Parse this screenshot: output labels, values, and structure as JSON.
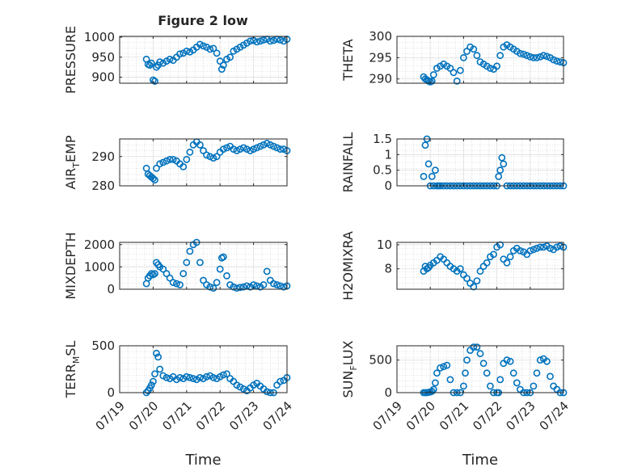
{
  "figure_title": "Figure 2 low",
  "x_tick_labels": [
    "07/19",
    "07/20",
    "07/21",
    "07/22",
    "07/23",
    "07/24"
  ],
  "marker_color": "#0072BD",
  "chart_data": [
    {
      "id": "pressure",
      "type": "scatter",
      "title": "Figure 2 low",
      "xlabel": "",
      "ylabel": "PRESSURE",
      "ylabel_sub": "",
      "xlim": [
        0,
        5
      ],
      "ylim": [
        885,
        1002
      ],
      "yticks": [
        900,
        950,
        1000
      ],
      "x": [
        0.8,
        0.85,
        0.9,
        0.95,
        1.0,
        1.05,
        1.1,
        1.15,
        1.2,
        1.3,
        1.4,
        1.5,
        1.6,
        1.7,
        1.8,
        1.9,
        2.0,
        2.1,
        2.2,
        2.3,
        2.4,
        2.5,
        2.6,
        2.7,
        2.8,
        2.9,
        3.0,
        3.05,
        3.1,
        3.2,
        3.3,
        3.4,
        3.5,
        3.6,
        3.7,
        3.8,
        3.9,
        4.0,
        4.1,
        4.2,
        4.3,
        4.4,
        4.5,
        4.6,
        4.7,
        4.8,
        4.9,
        5.0
      ],
      "y": [
        945,
        932,
        930,
        935,
        893,
        890,
        925,
        930,
        938,
        935,
        940,
        945,
        942,
        950,
        958,
        960,
        965,
        963,
        968,
        975,
        982,
        978,
        975,
        970,
        972,
        960,
        940,
        920,
        930,
        945,
        950,
        965,
        970,
        975,
        980,
        985,
        990,
        992,
        988,
        990,
        993,
        995,
        990,
        992,
        995,
        993,
        990,
        995
      ]
    },
    {
      "id": "theta",
      "type": "scatter",
      "title": "",
      "xlabel": "",
      "ylabel": "THETA",
      "ylabel_sub": "",
      "xlim": [
        0,
        5
      ],
      "ylim": [
        289,
        300
      ],
      "yticks": [
        290,
        295,
        300
      ],
      "x": [
        0.8,
        0.85,
        0.9,
        0.95,
        1.0,
        1.05,
        1.1,
        1.2,
        1.3,
        1.4,
        1.5,
        1.6,
        1.7,
        1.8,
        1.9,
        2.0,
        2.1,
        2.2,
        2.3,
        2.4,
        2.5,
        2.6,
        2.7,
        2.8,
        2.9,
        3.0,
        3.1,
        3.2,
        3.3,
        3.4,
        3.5,
        3.6,
        3.7,
        3.8,
        3.9,
        4.0,
        4.1,
        4.2,
        4.3,
        4.4,
        4.5,
        4.6,
        4.7,
        4.8,
        4.9,
        5.0
      ],
      "y": [
        290.5,
        290.0,
        289.8,
        289.5,
        289.3,
        289.5,
        291.0,
        292.5,
        293.0,
        293.5,
        293.0,
        292.5,
        291.5,
        289.5,
        292.0,
        295.0,
        296.5,
        297.5,
        297.0,
        295.5,
        294.0,
        293.5,
        293.0,
        292.5,
        292.3,
        293.0,
        295.5,
        297.5,
        298.0,
        297.5,
        297.0,
        296.5,
        296.0,
        295.8,
        295.5,
        295.2,
        295.0,
        295.0,
        295.2,
        295.5,
        295.3,
        295.0,
        294.5,
        294.2,
        294.0,
        293.8
      ]
    },
    {
      "id": "air_temp",
      "type": "scatter",
      "title": "",
      "xlabel": "",
      "ylabel": "AIR",
      "ylabel_sub": "T",
      "ylabel_rest": "EMP",
      "xlim": [
        0,
        5
      ],
      "ylim": [
        280,
        296
      ],
      "yticks": [
        280,
        290
      ],
      "x": [
        0.8,
        0.85,
        0.9,
        0.95,
        1.0,
        1.05,
        1.1,
        1.2,
        1.3,
        1.4,
        1.5,
        1.6,
        1.7,
        1.8,
        1.9,
        2.0,
        2.1,
        2.2,
        2.3,
        2.4,
        2.5,
        2.6,
        2.7,
        2.8,
        2.9,
        3.0,
        3.1,
        3.2,
        3.3,
        3.4,
        3.5,
        3.6,
        3.7,
        3.8,
        3.9,
        4.0,
        4.1,
        4.2,
        4.3,
        4.4,
        4.5,
        4.6,
        4.7,
        4.8,
        4.9,
        5.0
      ],
      "y": [
        286,
        284,
        283.5,
        283,
        282.5,
        282,
        286,
        287.5,
        288,
        288.5,
        289,
        289,
        288.5,
        287.5,
        286.5,
        289,
        291.5,
        294,
        295,
        294,
        292,
        290.5,
        290,
        289.5,
        290,
        291.5,
        292.5,
        293,
        293.5,
        292.5,
        292,
        292.5,
        293,
        292.5,
        292,
        292.5,
        293,
        293.5,
        294,
        294.5,
        294,
        293.5,
        293,
        292.5,
        292.5,
        292
      ]
    },
    {
      "id": "rainfall",
      "type": "scatter",
      "title": "",
      "xlabel": "",
      "ylabel": "RAINFALL",
      "ylabel_sub": "",
      "xlim": [
        0,
        5
      ],
      "ylim": [
        0,
        1.5
      ],
      "yticks": [
        0,
        0.5,
        1,
        1.5
      ],
      "x": [
        0.8,
        0.85,
        0.9,
        0.95,
        1.0,
        1.05,
        1.1,
        1.15,
        1.2,
        1.25,
        1.3,
        1.4,
        1.5,
        1.6,
        1.7,
        1.8,
        1.9,
        2.0,
        2.1,
        2.2,
        2.3,
        2.4,
        2.5,
        2.6,
        2.7,
        2.8,
        2.9,
        3.0,
        3.05,
        3.1,
        3.15,
        3.2,
        3.3,
        3.4,
        3.5,
        3.6,
        3.7,
        3.8,
        3.9,
        4.0,
        4.1,
        4.2,
        4.3,
        4.4,
        4.5,
        4.6,
        4.7,
        4.8,
        4.9,
        5.0
      ],
      "y": [
        0.3,
        1.3,
        1.5,
        0.7,
        0,
        0.3,
        0,
        0.5,
        0,
        0,
        0,
        0,
        0,
        0,
        0,
        0,
        0,
        0,
        0,
        0,
        0,
        0,
        0,
        0,
        0,
        0,
        0,
        0,
        0.3,
        0.5,
        0.9,
        0.7,
        0,
        0,
        0,
        0,
        0,
        0,
        0,
        0,
        0,
        0,
        0,
        0,
        0,
        0,
        0,
        0,
        0,
        0
      ]
    },
    {
      "id": "mixdepth",
      "type": "scatter",
      "title": "",
      "xlabel": "",
      "ylabel": "MIXDEPTH",
      "ylabel_sub": "",
      "xlim": [
        0,
        5
      ],
      "ylim": [
        0,
        2100
      ],
      "yticks": [
        0,
        1000,
        2000
      ],
      "x": [
        0.8,
        0.85,
        0.9,
        0.95,
        1.0,
        1.05,
        1.1,
        1.15,
        1.2,
        1.3,
        1.4,
        1.5,
        1.6,
        1.7,
        1.8,
        1.9,
        2.0,
        2.1,
        2.2,
        2.3,
        2.4,
        2.5,
        2.6,
        2.7,
        2.8,
        2.9,
        3.0,
        3.05,
        3.1,
        3.2,
        3.3,
        3.4,
        3.5,
        3.6,
        3.7,
        3.8,
        3.9,
        4.0,
        4.1,
        4.2,
        4.3,
        4.4,
        4.5,
        4.6,
        4.7,
        4.8,
        4.9,
        5.0
      ],
      "y": [
        250,
        500,
        600,
        700,
        650,
        700,
        1200,
        1100,
        1000,
        900,
        700,
        500,
        300,
        250,
        200,
        700,
        1200,
        1700,
        2000,
        2100,
        1200,
        400,
        200,
        100,
        50,
        300,
        900,
        1400,
        1450,
        600,
        200,
        100,
        50,
        80,
        100,
        150,
        100,
        200,
        150,
        100,
        200,
        800,
        400,
        250,
        200,
        150,
        100,
        150
      ]
    },
    {
      "id": "h2omixra",
      "type": "scatter",
      "title": "",
      "xlabel": "",
      "ylabel": "H2OMIXRA",
      "ylabel_sub": "",
      "xlim": [
        0,
        5
      ],
      "ylim": [
        6.3,
        10.2
      ],
      "yticks": [
        8,
        10
      ],
      "x": [
        0.8,
        0.85,
        0.9,
        0.95,
        1.0,
        1.1,
        1.2,
        1.3,
        1.4,
        1.5,
        1.6,
        1.7,
        1.8,
        1.9,
        2.0,
        2.1,
        2.2,
        2.3,
        2.4,
        2.5,
        2.6,
        2.7,
        2.8,
        2.9,
        3.0,
        3.1,
        3.2,
        3.3,
        3.4,
        3.5,
        3.6,
        3.7,
        3.8,
        3.9,
        4.0,
        4.1,
        4.2,
        4.3,
        4.4,
        4.5,
        4.6,
        4.7,
        4.8,
        4.9,
        5.0
      ],
      "y": [
        7.8,
        8.2,
        8.0,
        8.1,
        8.3,
        8.5,
        8.7,
        9.0,
        8.8,
        8.5,
        8.2,
        8.0,
        7.8,
        8.0,
        7.5,
        7.2,
        6.8,
        6.5,
        7.0,
        7.8,
        8.2,
        8.5,
        9.0,
        9.2,
        9.8,
        10.0,
        8.8,
        8.5,
        9.0,
        9.5,
        9.7,
        9.5,
        9.4,
        9.2,
        9.5,
        9.6,
        9.7,
        9.8,
        9.8,
        9.9,
        9.7,
        9.6,
        9.8,
        9.9,
        9.8
      ]
    },
    {
      "id": "terr_msl",
      "type": "scatter",
      "title": "",
      "xlabel": "Time",
      "ylabel": "TERR",
      "ylabel_sub": "M",
      "ylabel_rest": "SL",
      "xlim": [
        0,
        5
      ],
      "ylim": [
        0,
        500
      ],
      "yticks": [
        0,
        500
      ],
      "x": [
        0.8,
        0.85,
        0.9,
        0.95,
        1.0,
        1.05,
        1.1,
        1.15,
        1.2,
        1.3,
        1.4,
        1.5,
        1.6,
        1.7,
        1.8,
        1.9,
        2.0,
        2.1,
        2.2,
        2.3,
        2.4,
        2.5,
        2.6,
        2.7,
        2.8,
        2.9,
        3.0,
        3.1,
        3.2,
        3.3,
        3.4,
        3.5,
        3.6,
        3.7,
        3.8,
        3.9,
        4.0,
        4.1,
        4.2,
        4.3,
        4.4,
        4.5,
        4.6,
        4.7,
        4.8,
        4.9,
        5.0
      ],
      "y": [
        0,
        20,
        50,
        80,
        120,
        200,
        420,
        380,
        250,
        180,
        160,
        150,
        170,
        140,
        160,
        150,
        170,
        160,
        150,
        140,
        160,
        150,
        170,
        180,
        160,
        150,
        170,
        190,
        200,
        150,
        120,
        80,
        60,
        40,
        20,
        50,
        80,
        100,
        70,
        40,
        10,
        0,
        0,
        80,
        120,
        130,
        160
      ]
    },
    {
      "id": "sun_flux",
      "type": "scatter",
      "title": "",
      "xlabel": "Time",
      "ylabel": "SUN",
      "ylabel_sub": "F",
      "ylabel_rest": "LUX",
      "xlim": [
        0,
        5
      ],
      "ylim": [
        0,
        720
      ],
      "yticks": [
        0,
        500
      ],
      "x": [
        0.8,
        0.85,
        0.9,
        0.95,
        1.0,
        1.05,
        1.1,
        1.15,
        1.2,
        1.3,
        1.4,
        1.5,
        1.6,
        1.7,
        1.8,
        1.9,
        2.0,
        2.05,
        2.1,
        2.2,
        2.3,
        2.4,
        2.5,
        2.6,
        2.7,
        2.8,
        2.9,
        3.0,
        3.05,
        3.1,
        3.2,
        3.3,
        3.4,
        3.5,
        3.6,
        3.7,
        3.8,
        3.9,
        4.0,
        4.1,
        4.2,
        4.3,
        4.4,
        4.5,
        4.6,
        4.7,
        4.8,
        4.9,
        5.0
      ],
      "y": [
        0,
        0,
        0,
        5,
        10,
        20,
        50,
        150,
        300,
        380,
        400,
        420,
        200,
        0,
        0,
        0,
        100,
        300,
        500,
        650,
        700,
        700,
        600,
        450,
        300,
        100,
        0,
        0,
        0,
        200,
        450,
        500,
        480,
        300,
        150,
        50,
        0,
        0,
        0,
        100,
        300,
        500,
        520,
        480,
        250,
        100,
        50,
        0,
        0
      ]
    }
  ]
}
